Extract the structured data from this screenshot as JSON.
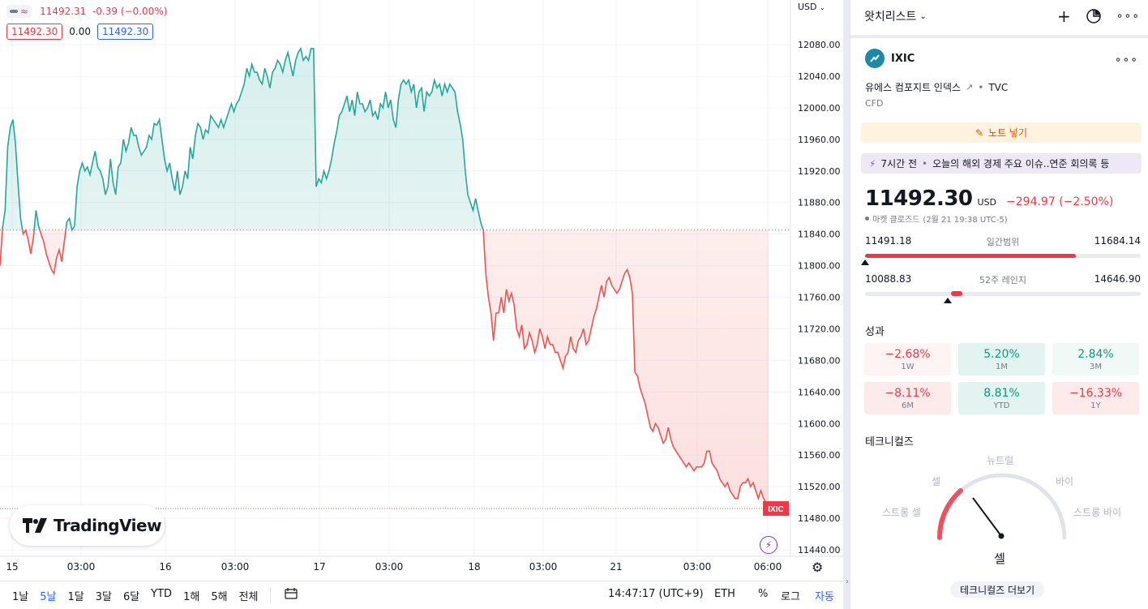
{
  "legend": {
    "last": "11492.31",
    "change": "-0.39",
    "change_pct": "(−0.00%)",
    "bid": "11492.30",
    "spread": "0.00",
    "ask": "11492.30"
  },
  "currency_selector": "USD",
  "chart_data": {
    "type": "area",
    "symbol_label": "IXIC",
    "baseline": 11845,
    "last_price": 11492.3,
    "ylim": [
      11430,
      12100
    ],
    "y_ticks": [
      "12080.00",
      "12040.00",
      "12000.00",
      "11960.00",
      "11920.00",
      "11880.00",
      "11840.00",
      "11800.00",
      "11760.00",
      "11720.00",
      "11680.00",
      "11640.00",
      "11600.00",
      "11560.00",
      "11520.00",
      "11480.00",
      "11440.00"
    ],
    "x_ticks": [
      "15",
      "03:00",
      "16",
      "03:00",
      "17",
      "03:00",
      "18",
      "03:00",
      "21",
      "03:00",
      "06:00"
    ],
    "colors": {
      "above": "#26a69a",
      "below": "#ef5350"
    },
    "series": [
      {
        "values": [
          11800,
          11848,
          11870,
          11950,
          11975,
          11985,
          11955,
          11905,
          11860,
          11840,
          11845,
          11832,
          11815,
          11835,
          11870,
          11850,
          11840,
          11830,
          11815,
          11805,
          11795,
          11790,
          11810,
          11820,
          11805,
          11830,
          11855,
          11860,
          11845,
          11850,
          11900,
          11920,
          11930,
          11920,
          11925,
          11915,
          11930,
          11945,
          11925,
          11920,
          11910,
          11890,
          11900,
          11935,
          11905,
          11890,
          11925,
          11930,
          11960,
          11945,
          11955,
          11975,
          11965,
          11965,
          11950,
          11940,
          11945,
          11950,
          11965,
          11960,
          11980,
          11978,
          11985,
          11960,
          11935,
          11920,
          11930,
          11910,
          11895,
          11920,
          11890,
          11900,
          11920,
          11910,
          11950,
          11935,
          11965,
          11980,
          11975,
          11960,
          11972,
          11968,
          11990,
          11985,
          11980,
          11975,
          11985,
          11975,
          11985,
          11995,
          12005,
          11995,
          12005,
          12010,
          12020,
          12030,
          12050,
          12040,
          12055,
          12045,
          12045,
          12035,
          12030,
          12050,
          12040,
          12025,
          12045,
          12050,
          12060,
          12055,
          12045,
          12060,
          12070,
          12055,
          12040,
          12060,
          12070,
          12075,
          12060,
          12065,
          12060,
          12075,
          12075,
          11900,
          11910,
          11905,
          11920,
          11910,
          11920,
          11935,
          11955,
          11970,
          11990,
          11995,
          12005,
          12015,
          11995,
          12010,
          11990,
          12020,
          12005,
          12005,
          11995,
          12000,
          12010,
          11990,
          11995,
          11985,
          12005,
          12000,
          12020,
          12000,
          12010,
          11985,
          11975,
          12010,
          12030,
          12035,
          12030,
          12035,
          12020,
          12030,
          12000,
          12020,
          12025,
          11995,
          12020,
          12015,
          12020,
          12035,
          12025,
          12030,
          12015,
          12030,
          12020,
          12030,
          12025,
          12020,
          11995,
          11980,
          11960,
          11920,
          11890,
          11880,
          11870,
          11885,
          11870,
          11855,
          11845,
          11790,
          11760,
          11740,
          11705,
          11740,
          11740,
          11760,
          11740,
          11770,
          11755,
          11765,
          11750,
          11720,
          11710,
          11725,
          11695,
          11700,
          11715,
          11705,
          11690,
          11700,
          11720,
          11710,
          11695,
          11710,
          11700,
          11700,
          11690,
          11690,
          11680,
          11670,
          11685,
          11690,
          11710,
          11695,
          11690,
          11705,
          11710,
          11720,
          11700,
          11705,
          11720,
          11735,
          11745,
          11760,
          11775,
          11760,
          11780,
          11785,
          11775,
          11770,
          11765,
          11770,
          11780,
          11790,
          11795,
          11785,
          11765,
          11665,
          11660,
          11645,
          11635,
          11625,
          11610,
          11595,
          11590,
          11600,
          11595,
          11585,
          11575,
          11580,
          11595,
          11580,
          11570,
          11565,
          11560,
          11555,
          11550,
          11545,
          11550,
          11545,
          11540,
          11545,
          11545,
          11545,
          11550,
          11565,
          11565,
          11550,
          11545,
          11540,
          11530,
          11525,
          11520,
          11525,
          11515,
          11510,
          11505,
          11505,
          11520,
          11525,
          11525,
          11530,
          11520,
          11525,
          11515,
          11505,
          11515,
          11505,
          11500,
          11492
        ]
      }
    ]
  },
  "watermark": "TradingView",
  "bottom_bar": {
    "ranges": [
      "1날",
      "5날",
      "1달",
      "3달",
      "6달",
      "YTD",
      "1해",
      "5해",
      "전체"
    ],
    "active_range": 1,
    "time": "14:47:17 (UTC+9)",
    "session": "ETH",
    "percent": "%",
    "log": "로그",
    "auto": "자동"
  },
  "panel": {
    "header_title": "왓치리스트",
    "symbol": "IXIC",
    "description": "유에스 컴포지트 인덱스",
    "exchange": "TVC",
    "type": "CFD",
    "note_label": "노트 넣기",
    "news": {
      "time": "7시간 전",
      "headline": "오늘의 해외 경제 주요 이슈..연준 회의록 등"
    },
    "price": "11492.30",
    "currency": "USD",
    "change": "−294.97 (−2.50%)",
    "market_status": "마켓 클로즈드",
    "status_time": "(2월 21 19:38 UTC-5)",
    "day_range": {
      "low": "11491.18",
      "label": "일간범위",
      "high": "11684.14",
      "position": 0.0
    },
    "week52_range": {
      "low": "10088.83",
      "label": "52주 레인지",
      "high": "14646.90",
      "position": 0.3
    },
    "performance_title": "성과",
    "performance": [
      {
        "value": "−2.68%",
        "label": "1W",
        "kind": "neg-light"
      },
      {
        "value": "5.20%",
        "label": "1M",
        "kind": "pos"
      },
      {
        "value": "2.84%",
        "label": "3M",
        "kind": "pos-light"
      },
      {
        "value": "−8.11%",
        "label": "6M",
        "kind": "neg"
      },
      {
        "value": "8.81%",
        "label": "YTD",
        "kind": "pos"
      },
      {
        "value": "−16.33%",
        "label": "1Y",
        "kind": "neg"
      }
    ],
    "technicals_title": "테크니컬즈",
    "gauge": {
      "neutral": "뉴트럴",
      "sell": "셀",
      "buy": "바이",
      "strong_sell": "스트롱 셀",
      "strong_buy": "스트롱 바이",
      "result": "셀"
    },
    "more_technicals": "테크니컬즈 더보기"
  }
}
